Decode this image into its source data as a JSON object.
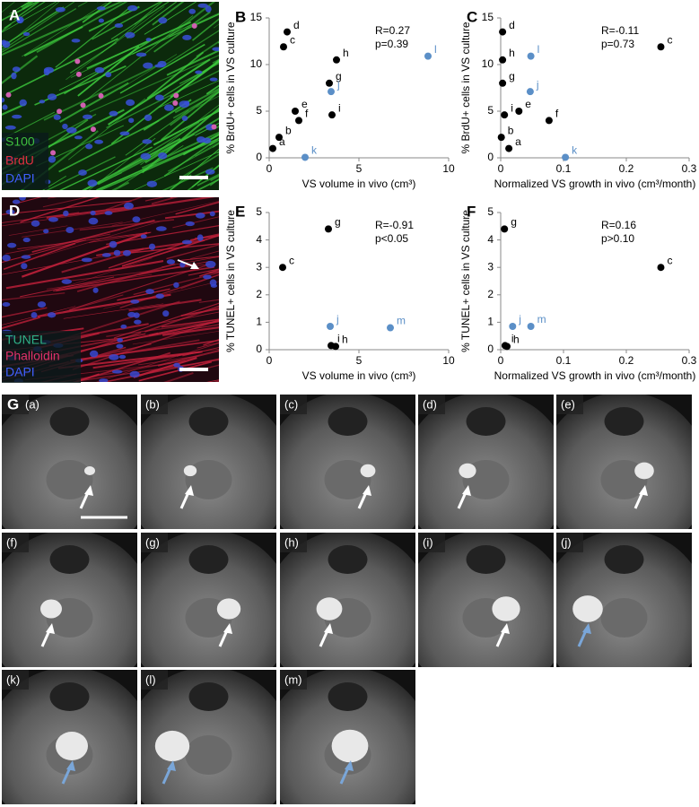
{
  "chart_data": [
    {
      "type": "scatter",
      "panel": "B",
      "ylabel": "% BrdU+ cells in VS culture",
      "xlabel": "VS volume in vivo (cm³)",
      "xlim": [
        0,
        10
      ],
      "xticks": [
        0,
        5,
        10
      ],
      "ylim": [
        0,
        15
      ],
      "yticks": [
        0,
        5,
        10,
        15
      ],
      "annotations": [
        "R=0.27",
        "p=0.39"
      ],
      "series": [
        {
          "color": "#000000",
          "x": [
            0.2,
            0.55,
            0.8,
            1.0,
            1.45,
            1.65,
            3.35,
            3.75,
            3.5
          ],
          "values": [
            1.0,
            2.2,
            11.9,
            13.5,
            5.0,
            4.0,
            8.0,
            10.5,
            4.6
          ],
          "point_labels": [
            "a",
            "b",
            "c",
            "d",
            "e",
            "f",
            "g",
            "h",
            "i"
          ]
        },
        {
          "color": "#5b8fc7",
          "x": [
            3.45,
            2.0,
            8.85
          ],
          "values": [
            7.1,
            0.05,
            10.9
          ],
          "point_labels": [
            "j",
            "k",
            "l"
          ]
        }
      ]
    },
    {
      "type": "scatter",
      "panel": "C",
      "ylabel": "% BrdU+ cells in VS culture",
      "xlabel": "Normalized VS growth in vivo (cm³/month)",
      "xlim": [
        0,
        0.3
      ],
      "xticks": [
        0,
        0.1,
        0.2,
        0.3
      ],
      "ylim": [
        0,
        15
      ],
      "yticks": [
        0,
        5,
        10,
        15
      ],
      "annotations": [
        "R=-0.11",
        "p=0.73"
      ],
      "series": [
        {
          "color": "#000000",
          "x": [
            0.013,
            0.001,
            0.255,
            0.003,
            0.029,
            0.077,
            0.003,
            0.003,
            0.006
          ],
          "values": [
            1.0,
            2.2,
            11.9,
            13.5,
            5.0,
            4.0,
            8.0,
            10.5,
            4.6
          ],
          "point_labels": [
            "a",
            "b",
            "c",
            "d",
            "e",
            "f",
            "g",
            "h",
            "i"
          ]
        },
        {
          "color": "#5b8fc7",
          "x": [
            0.047,
            0.103,
            0.048
          ],
          "values": [
            7.1,
            0.05,
            10.9
          ],
          "point_labels": [
            "j",
            "k",
            "l"
          ]
        }
      ]
    },
    {
      "type": "scatter",
      "panel": "E",
      "ylabel": "% TUNEL+ cells in VS culture",
      "xlabel": "VS volume in vivo (cm³)",
      "xlim": [
        0,
        10
      ],
      "xticks": [
        0,
        5,
        10
      ],
      "ylim": [
        0,
        5
      ],
      "yticks": [
        0,
        1,
        2,
        3,
        4,
        5
      ],
      "annotations": [
        "R=-0.91",
        "p<0.05"
      ],
      "series": [
        {
          "color": "#000000",
          "x": [
            0.75,
            3.3,
            3.45,
            3.7
          ],
          "values": [
            3.0,
            4.4,
            0.15,
            0.12
          ],
          "point_labels": [
            "c",
            "g",
            "i",
            "h"
          ]
        },
        {
          "color": "#5b8fc7",
          "x": [
            3.4,
            6.75
          ],
          "values": [
            0.85,
            0.8
          ],
          "point_labels": [
            "j",
            "m"
          ]
        }
      ]
    },
    {
      "type": "scatter",
      "panel": "F",
      "ylabel": "% TUNEL+ cells in VS culture",
      "xlabel": "Normalized VS growth in vivo (cm³/month)",
      "xlim": [
        0,
        0.3
      ],
      "xticks": [
        0,
        0.1,
        0.2,
        0.3
      ],
      "ylim": [
        0,
        5
      ],
      "yticks": [
        0,
        1,
        2,
        3,
        4,
        5
      ],
      "annotations": [
        "R=0.16",
        "p>0.10"
      ],
      "series": [
        {
          "color": "#000000",
          "x": [
            0.255,
            0.006,
            0.007,
            0.01
          ],
          "values": [
            3.0,
            4.4,
            0.15,
            0.12
          ],
          "point_labels": [
            "c",
            "g",
            "i",
            "h"
          ]
        },
        {
          "color": "#5b8fc7",
          "x": [
            0.019,
            0.048
          ],
          "values": [
            0.85,
            0.85
          ],
          "point_labels": [
            "j",
            "m"
          ]
        }
      ]
    }
  ],
  "micrographs": [
    {
      "letter": "A",
      "stains": [
        {
          "text": "S100",
          "color": "#3fbf3f"
        },
        {
          "text": "BrdU",
          "color": "#e03040"
        },
        {
          "text": "DAPI",
          "color": "#4060ff"
        }
      ]
    },
    {
      "letter": "D",
      "stains": [
        {
          "text": "TUNEL",
          "color": "#2fb087"
        },
        {
          "text": "Phalloidin",
          "color": "#e0306a"
        },
        {
          "text": "DAPI",
          "color": "#4060ff"
        }
      ]
    }
  ],
  "mri": {
    "letter": "G",
    "images": [
      "(a)",
      "(b)",
      "(c)",
      "(d)",
      "(e)",
      "(f)",
      "(g)",
      "(h)",
      "(i)",
      "(j)",
      "(k)",
      "(l)",
      "(m)"
    ]
  }
}
